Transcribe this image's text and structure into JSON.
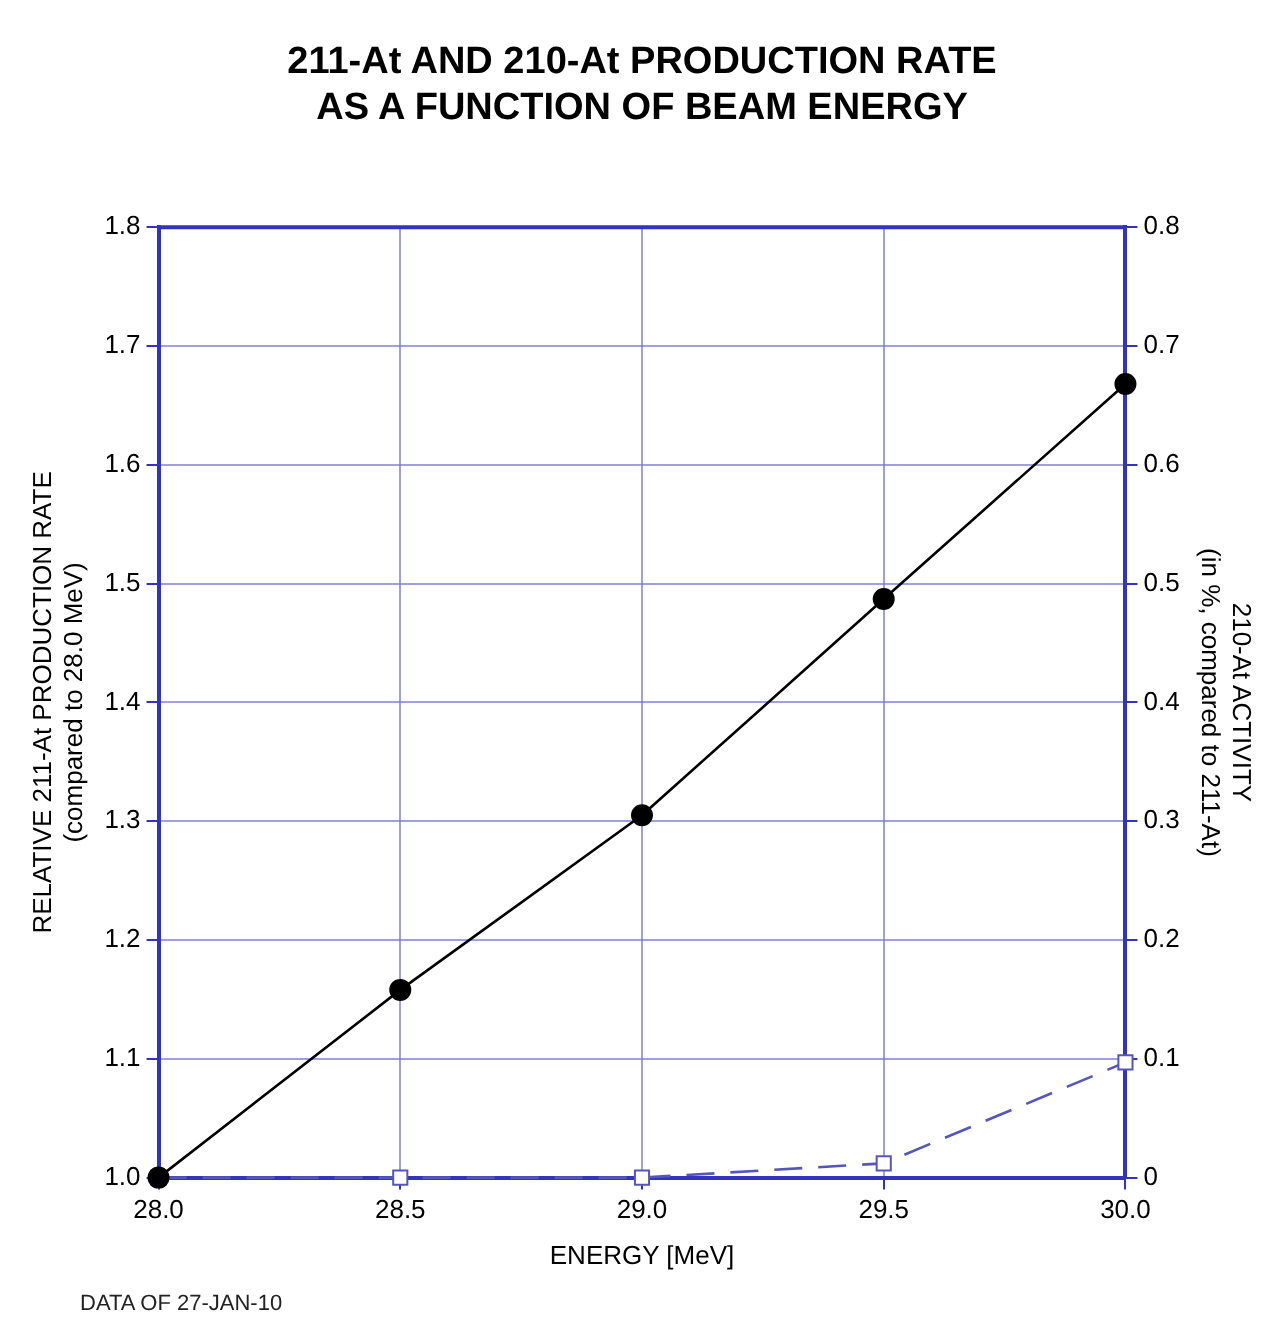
{
  "chart_data": {
    "type": "line",
    "title": "211-At AND 210-At PRODUCTION RATE\nAS A FUNCTION OF BEAM ENERGY",
    "xlabel": "ENERGY [MeV]",
    "ylabel": "RELATIVE 211-At PRODUCTION RATE\n(compared to 28.0 MeV)",
    "y2label": "210-At ACTIVITY\n(in %, compared to 211-At)",
    "annotations": [
      "DATA OF 27-JAN-10"
    ],
    "x": [
      28,
      28.5,
      29,
      29.5,
      30
    ],
    "series": [
      {
        "color": "#000000",
        "values": [
          1.0,
          1.158,
          1.305,
          1.487,
          1.668
        ],
        "marker": "circle",
        "line_style": "solid"
      },
      {
        "color": "#5555bb",
        "values": [
          0,
          0,
          0,
          0.012,
          0.097
        ],
        "axis": "y2",
        "marker": "square",
        "line_style": "dashed"
      }
    ],
    "xlim": [
      28,
      30
    ],
    "xticks": [
      {
        "value": 28,
        "label": "28.0"
      },
      {
        "value": 28.5,
        "label": "28.5"
      },
      {
        "value": 29,
        "label": "29.0"
      },
      {
        "value": 29.5,
        "label": "29.5"
      },
      {
        "value": 30,
        "label": "30.0"
      }
    ],
    "ylim": [
      1,
      1.8
    ],
    "yticks": [
      {
        "value": 1,
        "label": "1.0"
      },
      1.1,
      1.2,
      1.3,
      1.4,
      1.5,
      1.6,
      1.7,
      1.8
    ],
    "y2lim": [
      0,
      0.8
    ],
    "y2ticks": [
      0,
      0.1,
      0.2,
      0.3,
      0.4,
      0.5,
      0.6,
      0.7,
      0.8
    ],
    "grid": true
  }
}
